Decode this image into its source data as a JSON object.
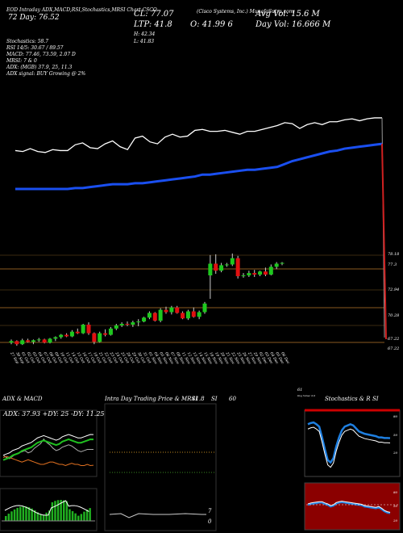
{
  "header": {
    "line1": "(Cisco Systems, Inc.) MunafaSutra.com",
    "line1_prefix": "EOD Intraday ADX,MACD,RSI,Stochastics,MRSI Chart CSCO",
    "line2": "72 Day: 76.52",
    "stats": {
      "cl": "CL: 77.07",
      "ltp": "LTP: 41.8",
      "open": "O: 41.99 6",
      "high": "H: 42.34",
      "low": "L: 41.83",
      "avg_vol": "Avg Vol: 15.6  M",
      "day_vol": "Day Vol: 16.666  M"
    },
    "indicators": [
      "Stochastics: 58.7",
      "RSI 14/5: 30.67 / 89.57",
      "MACD: 77.46,  73.59,  2.07 D",
      "MRSI: 7 & 0",
      "ADX:                (MGB) 37.9,  25,  11.3",
      "ADX signal:                   BUY Growing @ 2%"
    ]
  },
  "price_labels": [
    "78.18",
    "77.3",
    "72.94",
    "70.28",
    "67.22",
    "67.22"
  ],
  "x_dates": [
    "27 Sep",
    "30 Sep",
    "01 Oct",
    "02 Oct",
    "03 Oct",
    "04 Oct",
    "07 Oct",
    "08 Oct",
    "09 Oct",
    "10 Oct",
    "11 Oct",
    "14 Oct",
    "15 Oct",
    "16 Oct",
    "17 Oct",
    "18 Oct",
    "21 Oct",
    "22 Oct",
    "23 Oct",
    "24 Oct",
    "25 Oct",
    "28 Oct",
    "29 Oct",
    "30 Oct",
    "31 Oct",
    "01 Nov",
    "04 Nov",
    "05 Nov",
    "06 Nov",
    "07 Nov",
    "08 Nov",
    "11 Nov",
    "12 Nov",
    "13 Nov",
    "14 Nov",
    "15 Nov",
    "18 Nov",
    "19 Nov",
    "20 Nov",
    "21 Nov",
    "22 Nov",
    "25 Nov",
    "26 Nov",
    "27 Nov",
    "29 Nov",
    "02 Dec",
    "03 Dec",
    "04 Dec",
    "05 Dec",
    "06 Dec"
  ],
  "panels": {
    "adx_title": "ADX  & MACD",
    "adx_readout": "ADX: 37.93  +DY: 25  -DY: 11.25",
    "intra_title": "Intra  Day Trading Price  &  MRSI",
    "intra_values": "41.8",
    "intra_si": "SI",
    "intra_60": "60",
    "intra_7": "7",
    "intra_0": "0",
    "stoch_title": "Stochastics  &  R",
    "stoch_si": "SI",
    "stoch_ticks": [
      "80",
      "50",
      "20"
    ],
    "rsi_ticks": [
      "80",
      "50",
      "20"
    ],
    "corner": "61",
    "corner2": "Dog Value: 0.0"
  },
  "chart_data": [
    {
      "type": "candlestick",
      "title": "CSCO",
      "categories_ref": "x_dates",
      "ohlc": [
        [
          67.2,
          67.6,
          67.0,
          67.4
        ],
        [
          67.4,
          67.5,
          66.8,
          67.0
        ],
        [
          67.0,
          67.7,
          66.9,
          67.5
        ],
        [
          67.5,
          67.7,
          67.2,
          67.3
        ],
        [
          67.3,
          67.6,
          67.0,
          67.5
        ],
        [
          67.5,
          67.8,
          67.3,
          67.6
        ],
        [
          67.6,
          67.7,
          67.1,
          67.2
        ],
        [
          67.2,
          67.8,
          67.1,
          67.7
        ],
        [
          67.7,
          68.0,
          67.4,
          67.9
        ],
        [
          67.9,
          68.3,
          67.7,
          68.2
        ],
        [
          68.2,
          68.4,
          67.9,
          68.0
        ],
        [
          68.0,
          68.8,
          67.9,
          68.6
        ],
        [
          68.6,
          69.0,
          68.3,
          68.4
        ],
        [
          68.4,
          69.6,
          68.3,
          69.5
        ],
        [
          69.5,
          69.8,
          68.2,
          68.4
        ],
        [
          68.4,
          68.5,
          67.0,
          67.3
        ],
        [
          67.3,
          68.6,
          67.2,
          68.4
        ],
        [
          68.4,
          68.9,
          68.0,
          68.2
        ],
        [
          68.2,
          69.2,
          68.1,
          69.0
        ],
        [
          69.0,
          69.6,
          68.8,
          69.4
        ],
        [
          69.4,
          69.8,
          69.2,
          69.6
        ],
        [
          69.6,
          69.9,
          69.3,
          69.5
        ],
        [
          69.5,
          70.0,
          69.2,
          69.8
        ],
        [
          69.8,
          70.2,
          69.3,
          69.9
        ],
        [
          69.9,
          70.5,
          69.8,
          70.4
        ],
        [
          70.4,
          71.2,
          70.2,
          71.0
        ],
        [
          71.0,
          71.1,
          69.9,
          70.0
        ],
        [
          70.0,
          71.6,
          69.8,
          71.4
        ],
        [
          71.4,
          71.8,
          70.9,
          71.1
        ],
        [
          71.1,
          71.9,
          70.8,
          71.7
        ],
        [
          71.7,
          71.9,
          70.9,
          71.0
        ],
        [
          71.0,
          71.2,
          70.2,
          70.3
        ],
        [
          70.3,
          71.4,
          70.1,
          71.2
        ],
        [
          71.2,
          71.7,
          70.4,
          70.5
        ],
        [
          70.5,
          71.3,
          70.2,
          71.1
        ],
        [
          71.1,
          72.4,
          70.9,
          72.2
        ],
        [
          75.8,
          78.4,
          72.8,
          77.3
        ],
        [
          77.3,
          78.5,
          76.0,
          76.4
        ],
        [
          76.4,
          77.4,
          76.2,
          77.1
        ],
        [
          77.1,
          77.4,
          76.9,
          77.2
        ],
        [
          77.2,
          78.6,
          77.0,
          78.0
        ],
        [
          78.0,
          78.3,
          75.4,
          75.7
        ],
        [
          75.7,
          76.1,
          75.5,
          75.8
        ],
        [
          75.8,
          76.4,
          75.6,
          76.1
        ],
        [
          76.1,
          76.5,
          75.6,
          75.9
        ],
        [
          75.9,
          76.4,
          75.7,
          76.3
        ],
        [
          76.3,
          76.8,
          75.7,
          75.9
        ],
        [
          75.9,
          77.2,
          75.8,
          76.9
        ],
        [
          76.9,
          77.5,
          76.6,
          77.3
        ],
        [
          77.3,
          77.5,
          77.1,
          77.4
        ]
      ],
      "ma": [
        67.3,
        67.3,
        67.3,
        67.3,
        67.3,
        67.3,
        67.3,
        67.3,
        67.4,
        67.4,
        67.5,
        67.6,
        67.7,
        67.8,
        67.8,
        67.8,
        67.9,
        67.9,
        68.0,
        68.1,
        68.2,
        68.3,
        68.4,
        68.5,
        68.6,
        68.8,
        68.8,
        68.9,
        69.0,
        69.1,
        69.2,
        69.3,
        69.3,
        69.4,
        69.5,
        69.6,
        69.9,
        70.2,
        70.4,
        70.6,
        70.8,
        71.0,
        71.2,
        71.3,
        71.5,
        71.6,
        71.7,
        71.8,
        71.9,
        72.0
      ],
      "volume_line": [
        71.3,
        71.2,
        71.5,
        71.2,
        71.1,
        71.4,
        71.3,
        71.3,
        71.9,
        72.1,
        71.6,
        71.5,
        72.0,
        72.3,
        71.7,
        71.4,
        72.6,
        72.8,
        72.2,
        72.0,
        72.7,
        73.0,
        72.7,
        72.8,
        73.4,
        73.5,
        73.3,
        73.3,
        73.4,
        73.2,
        73.0,
        73.3,
        73.3,
        73.5,
        73.7,
        73.9,
        74.2,
        74.1,
        73.6,
        74.0,
        74.2,
        74.0,
        74.3,
        74.3,
        74.5,
        74.6,
        74.4,
        74.6,
        74.7,
        74.7
      ],
      "last_drop_to": 67.22,
      "ylim": [
        66.4,
        78.9
      ]
    },
    {
      "type": "line",
      "title": "ADX  & MACD",
      "series": [
        {
          "name": "ADX",
          "values": [
            20,
            21,
            22,
            24,
            25,
            26,
            28,
            29,
            30,
            31,
            33,
            35,
            36,
            37,
            36,
            35,
            34,
            33,
            34,
            36,
            37,
            38,
            37,
            36,
            35,
            35,
            36,
            37,
            38,
            37.9
          ]
        },
        {
          "name": "+DY",
          "values": [
            20,
            18,
            17,
            19,
            21,
            22,
            23,
            24,
            22,
            23,
            26,
            28,
            30,
            34,
            31,
            29,
            26,
            24,
            25,
            27,
            28,
            29,
            28,
            26,
            24,
            23,
            24,
            25,
            25,
            25
          ]
        },
        {
          "name": "-DY",
          "values": [
            18,
            19,
            18,
            17,
            16,
            15,
            14,
            15,
            16,
            15,
            14,
            13,
            12,
            12,
            13,
            14,
            14,
            13,
            12,
            12,
            11,
            12,
            13,
            12,
            12,
            11,
            11,
            12,
            11,
            11.25
          ]
        }
      ]
    },
    {
      "type": "line",
      "title": "Stochastics  &  RSI",
      "series": [
        {
          "name": "Stochastics",
          "values": [
            82,
            84,
            85,
            82,
            78,
            60,
            40,
            22,
            18,
            25,
            45,
            60,
            72,
            78,
            80,
            82,
            80,
            75,
            70,
            68,
            66,
            65,
            64,
            63,
            62,
            60,
            60,
            59,
            59,
            58.7
          ]
        },
        {
          "name": "RSI",
          "values": [
            50,
            52,
            53,
            54,
            55,
            55,
            52,
            50,
            46,
            48,
            53,
            55,
            56,
            55,
            54,
            53,
            52,
            51,
            50,
            49,
            46,
            45,
            44,
            43,
            42,
            44,
            40,
            35,
            32,
            30.67
          ]
        }
      ],
      "ylim": [
        0,
        100
      ]
    }
  ]
}
